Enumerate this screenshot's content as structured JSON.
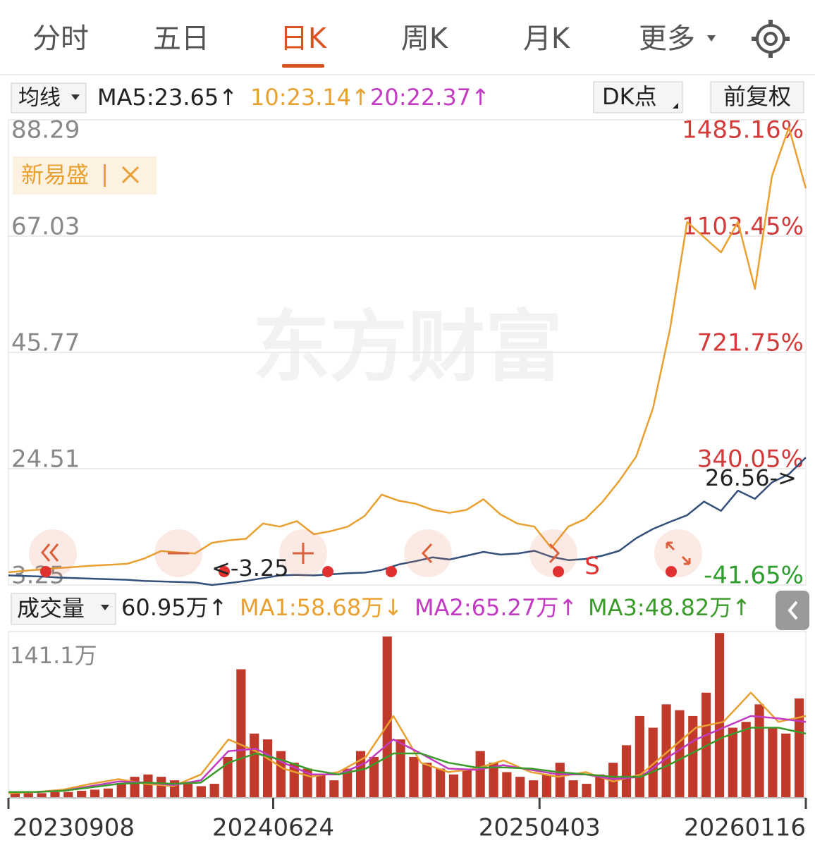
{
  "tabs": [
    "分时",
    "五日",
    "日K",
    "周K",
    "月K",
    "更多"
  ],
  "active_tab": "日K",
  "indicator": {
    "selector": "均线",
    "items": [
      {
        "text": "MA5:23.65↑",
        "color": "#222222"
      },
      {
        "text": "10:23.14↑",
        "color": "#e8a030"
      },
      {
        "text": "20:22.37↑",
        "color": "#c23ac2"
      }
    ],
    "dk": "DK点",
    "adjust": "前复权"
  },
  "volume_header": {
    "selector": "成交量",
    "items": [
      {
        "text": "60.95万↑",
        "color": "#222222"
      },
      {
        "text": "MA1:58.68万↓",
        "color": "#e8a030"
      },
      {
        "text": "MA2:65.27万↑",
        "color": "#c23ac2"
      },
      {
        "text": "MA3:48.82万↑",
        "color": "#3a9a2a"
      }
    ]
  },
  "chart_data": [
    {
      "type": "line",
      "watermark": "东方财富",
      "ylim": [
        3.25,
        88.29
      ],
      "yticks": [
        88.29,
        67.03,
        45.77,
        24.51,
        3.25
      ],
      "y2lim": [
        -41.65,
        1485.16
      ],
      "y2ticks": [
        {
          "value": 1485.16,
          "label": "1485.16%"
        },
        {
          "value": 1103.45,
          "label": "1103.45%"
        },
        {
          "value": 721.75,
          "label": "721.75%"
        },
        {
          "value": 340.05,
          "label": "340.05%"
        },
        {
          "value": -41.65,
          "label": "-41.65%"
        }
      ],
      "grid": true,
      "series": [
        {
          "name": "新易盛",
          "color": "#e8a030",
          "axis": "y2",
          "values": [
            0,
            5,
            10,
            14,
            18,
            22,
            25,
            28,
            45,
            70,
            65,
            62,
            97,
            105,
            110,
            160,
            150,
            168,
            125,
            135,
            150,
            185,
            255,
            235,
            225,
            205,
            195,
            205,
            240,
            190,
            160,
            150,
            80,
            150,
            175,
            230,
            300,
            380,
            540,
            800,
            1150,
            1100,
            1050,
            1150,
            930,
            1300,
            1460,
            1260
          ]
        },
        {
          "color": "#34507a",
          "values": [
            5.0,
            4.9,
            4.8,
            4.6,
            4.5,
            4.4,
            4.3,
            4.2,
            4.0,
            3.9,
            3.8,
            3.7,
            3.25,
            3.6,
            4.0,
            4.5,
            5.0,
            5.1,
            5.0,
            5.2,
            5.4,
            5.5,
            6.0,
            7.0,
            7.6,
            8.3,
            7.9,
            8.6,
            9.3,
            8.8,
            9.0,
            9.5,
            8.4,
            7.8,
            8.0,
            8.6,
            9.5,
            11.8,
            13.5,
            14.8,
            16.0,
            18.5,
            16.8,
            20.5,
            19.0,
            22.0,
            23.5,
            26.56
          ]
        }
      ],
      "annotations": [
        "<-3.25",
        "26.56->"
      ],
      "signal": "S"
    },
    {
      "type": "bar",
      "color": "#c0392b",
      "ylim": [
        0,
        141.1
      ],
      "yticks": [
        {
          "value": 141.1,
          "label": "141.1万"
        }
      ],
      "xlim": [
        0,
        100
      ],
      "xticks": [
        {
          "value": 0,
          "label": "20230908"
        },
        {
          "value": 33.2,
          "label": "20240624"
        },
        {
          "value": 66.6,
          "label": "20250403"
        },
        {
          "value": 100,
          "label": "20260116"
        }
      ],
      "values": [
        5,
        4,
        4,
        5,
        5,
        6,
        7,
        8,
        12,
        18,
        20,
        18,
        15,
        12,
        10,
        12,
        35,
        110,
        55,
        50,
        40,
        30,
        25,
        20,
        15,
        25,
        40,
        35,
        138,
        50,
        35,
        30,
        25,
        20,
        25,
        40,
        30,
        22,
        18,
        15,
        20,
        30,
        15,
        12,
        20,
        30,
        45,
        70,
        60,
        80,
        75,
        70,
        90,
        141,
        60,
        65,
        80,
        60,
        55,
        85
      ],
      "series": [
        {
          "name": "MA1",
          "color": "#e8a030",
          "values": [
            4,
            5,
            7,
            12,
            16,
            12,
            10,
            20,
            50,
            40,
            25,
            18,
            22,
            35,
            70,
            30,
            22,
            25,
            32,
            22,
            18,
            22,
            14,
            20,
            40,
            60,
            65,
            90,
            65,
            70
          ]
        },
        {
          "name": "MA2",
          "color": "#c23ac2",
          "values": [
            5,
            5,
            6,
            10,
            14,
            13,
            11,
            15,
            40,
            42,
            30,
            20,
            20,
            30,
            50,
            38,
            25,
            24,
            28,
            24,
            20,
            20,
            16,
            18,
            35,
            50,
            60,
            70,
            68,
            65
          ]
        },
        {
          "name": "MA3",
          "color": "#3a9a2a",
          "values": [
            5,
            5,
            6,
            9,
            12,
            13,
            12,
            13,
            30,
            38,
            32,
            24,
            20,
            25,
            38,
            38,
            30,
            26,
            26,
            25,
            22,
            20,
            18,
            18,
            28,
            40,
            52,
            60,
            60,
            55
          ]
        }
      ]
    }
  ]
}
